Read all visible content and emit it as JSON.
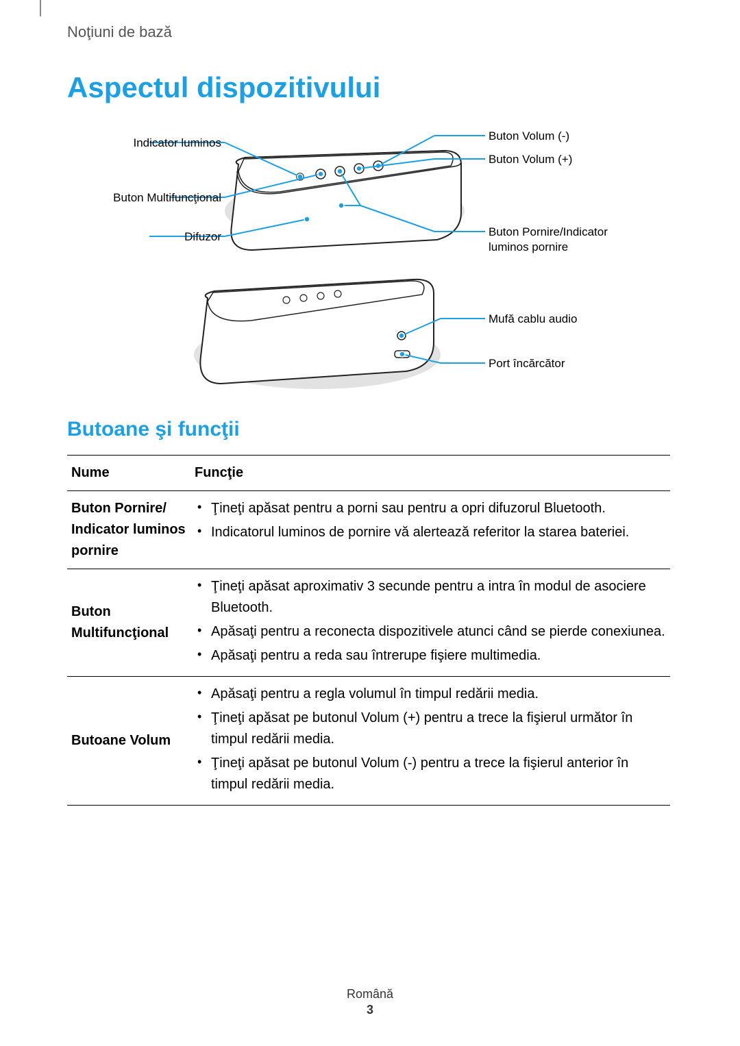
{
  "breadcrumb": "Noţiuni de bază",
  "title": "Aspectul dispozitivului",
  "subtitle": "Butoane şi funcţii",
  "diagram": {
    "line_color": "#1da0e2",
    "dot_fill": "#1da0e2",
    "dot_stroke": "#ffffff",
    "body_stroke": "#222222",
    "body_fill": "#ffffff",
    "shadow_fill": "#cfcfcf",
    "labels": {
      "left_top": "Indicator luminos",
      "left_mid": "Buton Multifuncţional",
      "left_bot": "Difuzor",
      "right_top": "Buton Volum (-)",
      "right_2": "Buton Volum (+)",
      "right_3_line1": "Buton Pornire/Indicator",
      "right_3_line2": "luminos pornire",
      "right_lower_1": "Mufă cablu audio",
      "right_lower_2": "Port încărcător"
    }
  },
  "table": {
    "header_name": "Nume",
    "header_func": "Funcţie",
    "rows": [
      {
        "name": "Buton Pornire/ Indicator luminos pornire",
        "items": [
          "Ţineţi apăsat pentru a porni sau pentru a opri difuzorul Bluetooth.",
          "Indicatorul luminos de pornire vă alertează referitor la starea bateriei."
        ]
      },
      {
        "name": "Buton Multifuncţional",
        "items": [
          "Ţineţi apăsat aproximativ 3 secunde pentru a intra în modul de asociere Bluetooth.",
          "Apăsaţi pentru a reconecta dispozitivele atunci când se pierde conexiunea.",
          "Apăsaţi pentru a reda sau întrerupe fişiere multimedia."
        ]
      },
      {
        "name": "Butoane Volum",
        "items": [
          "Apăsaţi pentru a regla volumul în timpul redării media.",
          "Ţineţi apăsat pe butonul Volum (+) pentru a trece la fişierul următor în timpul redării media.",
          "Ţineţi apăsat pe butonul Volum (-) pentru a trece la fişierul anterior în timpul redării media."
        ]
      }
    ]
  },
  "footer": {
    "lang": "Română",
    "page": "3"
  }
}
